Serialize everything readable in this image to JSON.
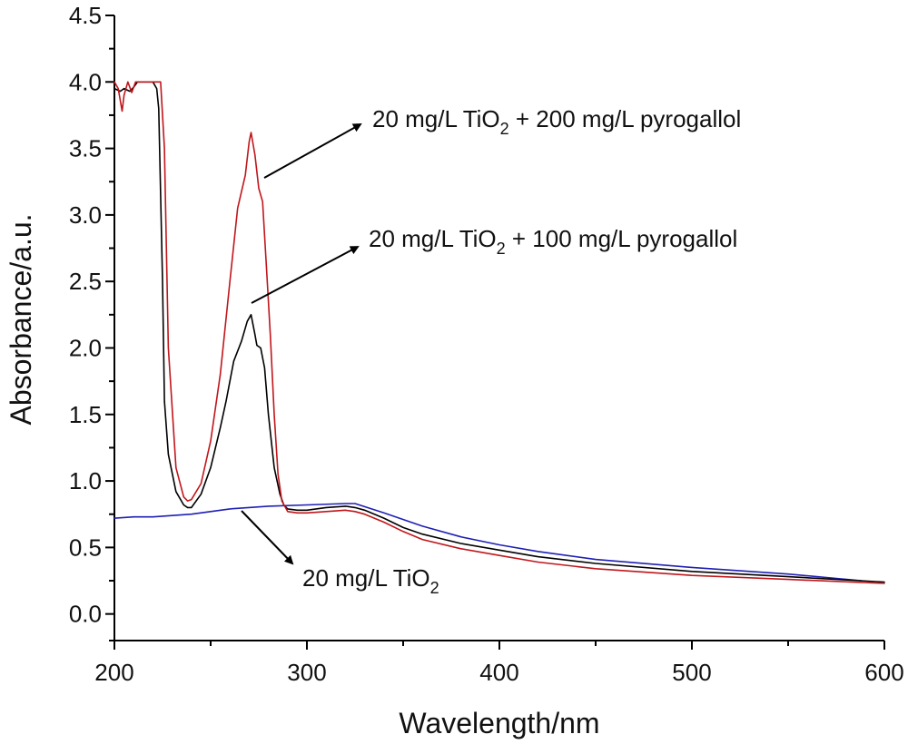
{
  "chart_data": {
    "type": "line",
    "title": "",
    "xlabel": "Wavelength/nm",
    "ylabel": "Absorbance/a.u.",
    "xlim": [
      200,
      600
    ],
    "ylim": [
      -0.2,
      4.5
    ],
    "xticks": [
      200,
      300,
      400,
      500,
      600
    ],
    "yticks": [
      0.0,
      0.5,
      1.0,
      1.5,
      2.0,
      2.5,
      3.0,
      3.5,
      4.0,
      4.5
    ],
    "ytick_labels": [
      "0.0",
      "0.5",
      "1.0",
      "1.5",
      "2.0",
      "2.5",
      "3.0",
      "3.5",
      "4.0",
      "4.5"
    ],
    "grid": false,
    "series": [
      {
        "name": "20 mg/L TiO2",
        "color": "#1f1fb4",
        "x": [
          200,
          210,
          220,
          240,
          260,
          280,
          300,
          320,
          325,
          340,
          360,
          380,
          400,
          420,
          450,
          500,
          550,
          588
        ],
        "y": [
          0.72,
          0.73,
          0.73,
          0.75,
          0.79,
          0.81,
          0.82,
          0.83,
          0.83,
          0.76,
          0.66,
          0.58,
          0.52,
          0.47,
          0.41,
          0.35,
          0.3,
          0.25
        ]
      },
      {
        "name": "20 mg/L TiO2 + 100 mg/L pyrogallol",
        "color": "#000000",
        "x": [
          200,
          203,
          205,
          208,
          210,
          212,
          215,
          220,
          222,
          223,
          225,
          226,
          228,
          232,
          236,
          238,
          240,
          245,
          250,
          255,
          258,
          262,
          266,
          269,
          271,
          273,
          274,
          276,
          278,
          280,
          283,
          286,
          288,
          290,
          295,
          300,
          310,
          320,
          325,
          330,
          340,
          350,
          360,
          380,
          400,
          420,
          450,
          500,
          550,
          600
        ],
        "y": [
          3.95,
          3.93,
          3.95,
          3.93,
          3.96,
          4.0,
          4.0,
          4.0,
          3.95,
          3.8,
          2.5,
          1.6,
          1.2,
          0.92,
          0.82,
          0.8,
          0.8,
          0.9,
          1.1,
          1.4,
          1.6,
          1.9,
          2.05,
          2.2,
          2.25,
          2.1,
          2.02,
          2.0,
          1.85,
          1.5,
          1.1,
          0.9,
          0.82,
          0.79,
          0.78,
          0.78,
          0.8,
          0.81,
          0.8,
          0.78,
          0.72,
          0.65,
          0.6,
          0.53,
          0.48,
          0.43,
          0.38,
          0.32,
          0.28,
          0.24
        ]
      },
      {
        "name": "20 mg/L TiO2 + 200 mg/L pyrogallol",
        "color": "#c0161b",
        "x": [
          200,
          202,
          204,
          205,
          207,
          209,
          211,
          214,
          218,
          222,
          224,
          226,
          228,
          232,
          236,
          238,
          240,
          245,
          250,
          255,
          260,
          264,
          268,
          270,
          271,
          273,
          275,
          277,
          279,
          281,
          283,
          285,
          287,
          290,
          295,
          300,
          310,
          320,
          325,
          330,
          340,
          350,
          360,
          380,
          400,
          420,
          450,
          500,
          550,
          600
        ],
        "y": [
          4.0,
          3.95,
          3.78,
          3.9,
          4.0,
          3.92,
          4.0,
          4.0,
          4.0,
          4.0,
          4.0,
          3.5,
          2.0,
          1.1,
          0.88,
          0.85,
          0.86,
          0.98,
          1.3,
          1.8,
          2.5,
          3.05,
          3.3,
          3.55,
          3.62,
          3.45,
          3.2,
          3.1,
          2.6,
          2.1,
          1.5,
          1.05,
          0.85,
          0.77,
          0.76,
          0.76,
          0.77,
          0.78,
          0.77,
          0.75,
          0.69,
          0.62,
          0.56,
          0.49,
          0.44,
          0.39,
          0.34,
          0.29,
          0.26,
          0.23
        ]
      }
    ],
    "annotations": [
      {
        "main": "20 mg/L TiO",
        "sub": "2",
        "tail": " + 200 mg/L pyrogallol"
      },
      {
        "main": "20 mg/L TiO",
        "sub": "2",
        "tail": " + 100 mg/L pyrogallol"
      },
      {
        "main": "20 mg/L TiO",
        "sub": "2",
        "tail": ""
      }
    ]
  }
}
